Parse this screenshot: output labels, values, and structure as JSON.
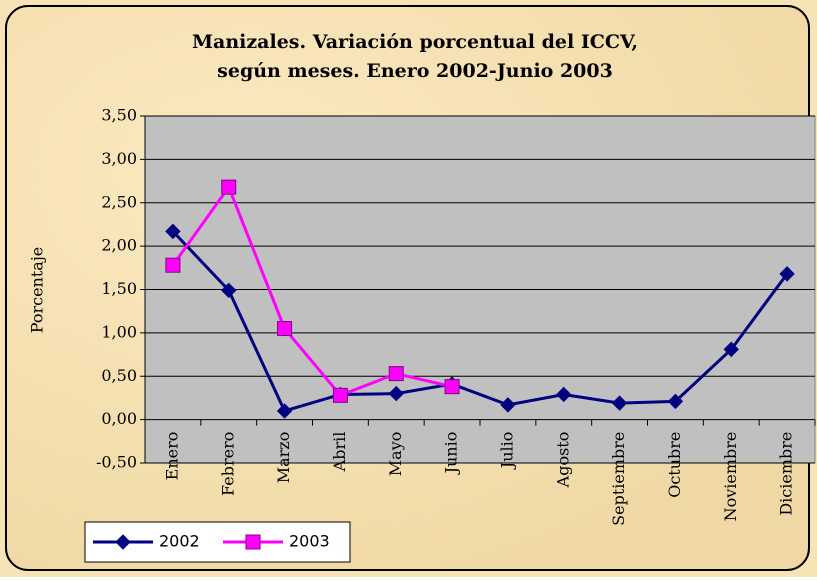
{
  "chart_data": {
    "type": "line",
    "title": [
      "Manizales. Variación porcentual del ICCV,",
      "según meses. Enero 2002-Junio 2003"
    ],
    "y_label": "Porcentaje",
    "categories": [
      "Enero",
      "Febrero",
      "Marzo",
      "Abril",
      "Mayo",
      "Junio",
      "Julio",
      "Agosto",
      "Septiembre",
      "Octubre",
      "Noviembre",
      "Diciembre"
    ],
    "series": [
      {
        "name": "2002",
        "color": "#000080",
        "marker": "diamond",
        "values": [
          2.17,
          1.49,
          0.1,
          0.29,
          0.3,
          0.41,
          0.17,
          0.29,
          0.19,
          0.21,
          0.81,
          1.68
        ]
      },
      {
        "name": "2003",
        "color": "#ff00ff",
        "marker": "square",
        "values": [
          1.78,
          2.68,
          1.05,
          0.28,
          0.53,
          0.38,
          null,
          null,
          null,
          null,
          null,
          null
        ]
      }
    ],
    "ylim": [
      -0.5,
      3.5
    ],
    "yticks": [
      {
        "value": -0.5,
        "label": "-0,50"
      },
      {
        "value": 0,
        "label": "0,00"
      },
      {
        "value": 0.5,
        "label": "0,50"
      },
      {
        "value": 1,
        "label": "1,00"
      },
      {
        "value": 1.5,
        "label": "1,50"
      },
      {
        "value": 2,
        "label": "2,00"
      },
      {
        "value": 2.5,
        "label": "2,50"
      },
      {
        "value": 3,
        "label": "3,00"
      },
      {
        "value": 3.5,
        "label": "3,50"
      }
    ],
    "grid": true,
    "plot_background": "#c0c0c0",
    "legend": "bottom-left"
  }
}
